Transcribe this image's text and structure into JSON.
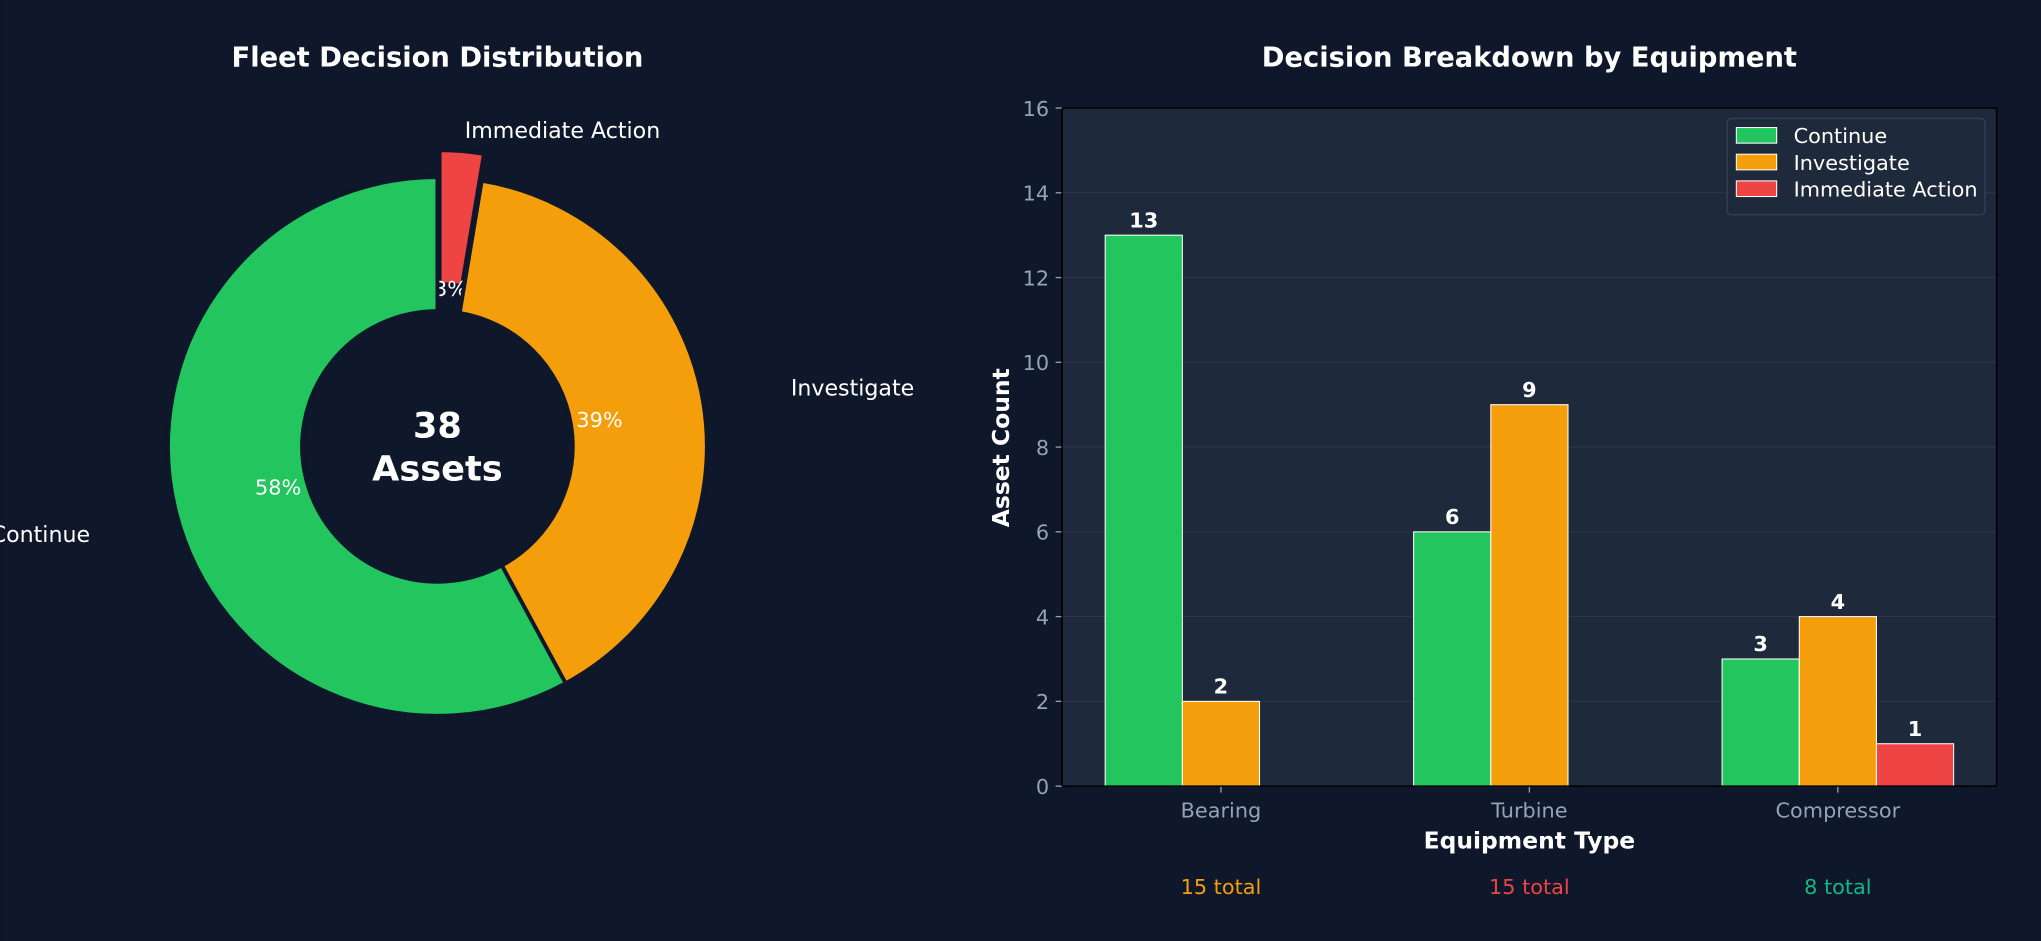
{
  "colors": {
    "background": "#0f172a",
    "axes_bg": "#1e293b",
    "continue": "#22c55e",
    "investigate": "#f59e0b",
    "immediate": "#ef4444",
    "tick": "#94a3b8",
    "grid": "#334155",
    "total_green": "#10b981"
  },
  "chart_data": [
    {
      "type": "pie",
      "style": "donut",
      "title": "Fleet Decision Distribution",
      "center_text": [
        "38",
        "Assets"
      ],
      "labels": [
        "Immediate Action",
        "Investigate",
        "Continue"
      ],
      "values": [
        1,
        15,
        22
      ],
      "percent_labels": [
        "3%",
        "39%",
        "58%"
      ],
      "exploded": [
        "Immediate Action"
      ],
      "start": "top",
      "direction": "clockwise"
    },
    {
      "type": "bar",
      "title": "Decision Breakdown by Equipment",
      "xlabel": "Equipment Type",
      "ylabel": "Asset Count",
      "categories": [
        "Bearing",
        "Turbine",
        "Compressor"
      ],
      "series": [
        {
          "name": "Continue",
          "values": [
            13,
            6,
            3
          ]
        },
        {
          "name": "Investigate",
          "values": [
            2,
            9,
            4
          ]
        },
        {
          "name": "Immediate Action",
          "values": [
            0,
            0,
            1
          ]
        }
      ],
      "ylim": [
        0,
        16
      ],
      "yticks": [
        0,
        2,
        4,
        6,
        8,
        10,
        12,
        14,
        16
      ],
      "grid": true,
      "legend": "top-right",
      "totals": [
        {
          "text": "15 total",
          "color": "#f59e0b"
        },
        {
          "text": "15 total",
          "color": "#ef4444"
        },
        {
          "text": "8 total",
          "color": "#10b981"
        }
      ]
    }
  ]
}
